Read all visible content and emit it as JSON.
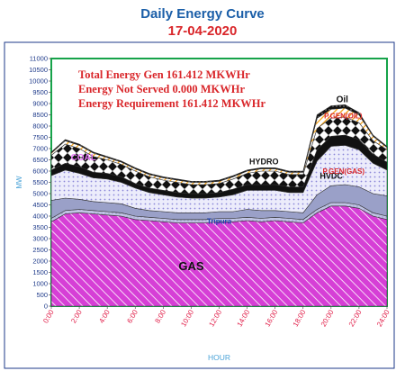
{
  "header": {
    "title": "Daily Energy Curve",
    "date": "17-04-2020"
  },
  "colors": {
    "frame": "#1e3a8a",
    "plot_border": "#16a34a",
    "gas": "#d63fd6",
    "tripura": "#c8c8e6",
    "hvdc": "#9aa0c8",
    "pgen_gas": "#e3e3f8",
    "hydro": "#111111",
    "coal": "#f59e0b",
    "pgen_oil": "#f4a8a8",
    "oil": "#111111",
    "annot_red": "#d9262a"
  },
  "chart_data": {
    "type": "area",
    "stacked": true,
    "x": [
      0,
      1,
      2,
      3,
      4,
      5,
      6,
      7,
      8,
      9,
      10,
      11,
      12,
      13,
      14,
      15,
      16,
      17,
      18,
      19,
      20,
      21,
      22,
      23,
      24
    ],
    "x_ticks": [
      "0:00",
      "2:00",
      "4:00",
      "6:00",
      "8:00",
      "10:00",
      "12:00",
      "14:00",
      "16:00",
      "18:00",
      "20:00",
      "22:00",
      "24:00"
    ],
    "xlabel": "HOUR",
    "ylabel": "MW",
    "ylim": [
      0,
      11000
    ],
    "y_ticks": [
      0,
      500,
      1000,
      1500,
      2000,
      2500,
      3000,
      3500,
      4000,
      4500,
      5000,
      5500,
      6000,
      6500,
      7000,
      7500,
      8000,
      8500,
      9000,
      9500,
      10000,
      10500,
      11000
    ],
    "series": [
      {
        "name": "GAS",
        "values": [
          3750,
          4100,
          4150,
          4100,
          4050,
          4000,
          3850,
          3800,
          3750,
          3700,
          3700,
          3700,
          3750,
          3750,
          3800,
          3750,
          3800,
          3750,
          3700,
          4150,
          4450,
          4450,
          4350,
          4000,
          3850
        ]
      },
      {
        "name": "Tripura",
        "values": [
          150,
          150,
          150,
          150,
          150,
          150,
          150,
          150,
          150,
          150,
          150,
          150,
          150,
          150,
          150,
          150,
          150,
          150,
          150,
          150,
          150,
          150,
          150,
          150,
          150
        ]
      },
      {
        "name": "HVDC",
        "values": [
          800,
          550,
          450,
          400,
          400,
          400,
          350,
          300,
          300,
          300,
          300,
          300,
          300,
          300,
          350,
          350,
          300,
          300,
          300,
          650,
          750,
          800,
          800,
          850,
          900
        ]
      },
      {
        "name": "P.GEN(GAS)",
        "values": [
          1100,
          1250,
          1150,
          1050,
          1050,
          950,
          900,
          800,
          750,
          700,
          650,
          650,
          650,
          750,
          850,
          900,
          900,
          850,
          900,
          1500,
          1750,
          1750,
          1650,
          1350,
          1150
        ]
      },
      {
        "name": "HYDRO",
        "values": [
          250,
          300,
          300,
          250,
          250,
          250,
          200,
          200,
          200,
          200,
          200,
          200,
          200,
          250,
          250,
          250,
          250,
          250,
          250,
          500,
          450,
          450,
          450,
          400,
          350
        ]
      },
      {
        "name": "COAL",
        "values": [
          650,
          850,
          800,
          700,
          600,
          550,
          550,
          500,
          450,
          450,
          400,
          400,
          400,
          450,
          500,
          600,
          600,
          550,
          550,
          950,
          800,
          800,
          750,
          600,
          550
        ]
      },
      {
        "name": "P.GEN(OIL)",
        "values": [
          100,
          150,
          150,
          150,
          100,
          100,
          100,
          100,
          100,
          100,
          100,
          100,
          100,
          100,
          100,
          100,
          100,
          100,
          100,
          450,
          400,
          400,
          350,
          200,
          100
        ]
      },
      {
        "name": "Oil",
        "values": [
          50,
          50,
          50,
          50,
          50,
          50,
          50,
          50,
          50,
          50,
          50,
          50,
          50,
          50,
          50,
          50,
          50,
          50,
          50,
          150,
          150,
          150,
          100,
          50,
          50
        ]
      }
    ],
    "annotations": {
      "line1": "Total Energy Gen 161.412 MKWHr",
      "line2": "Energy Not Served  0.000 MKWHr",
      "line3": "Energy Requirement     161.412 MKWHr"
    }
  }
}
